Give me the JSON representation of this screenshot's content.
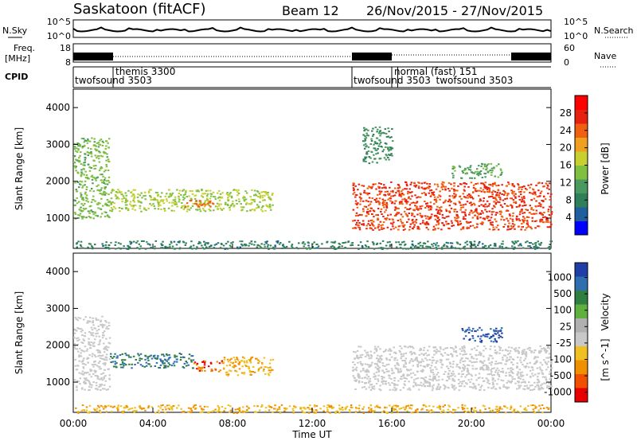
{
  "header": {
    "station": "Saskatoon (fitACF)",
    "beam_label": "Beam 12",
    "date_range": "26/Nov/2015 - 27/Nov/2015"
  },
  "strips": {
    "nsky_label": "N.Sky",
    "nsky_ticks": [
      "10^5",
      "10^0"
    ],
    "nsearch_label": "N.Search",
    "nsearch_ticks": [
      "10^5",
      "10^0"
    ],
    "freq_label_1": "Freq.",
    "freq_label_2": "[MHz]",
    "freq_ticks": [
      "18",
      "8"
    ],
    "nave_ticks": [
      "60",
      "0"
    ],
    "nave_label": "Nave",
    "cpid_label": "CPID"
  },
  "cpid_segments": [
    {
      "label": "twofsound 3503",
      "start_hour": 0.0
    },
    {
      "label": "themis 3300",
      "start_hour": 2.0
    },
    {
      "label": "twofsound 3503",
      "start_hour": 14.0
    },
    {
      "label": "normal (fast) 151",
      "start_hour": 16.0
    },
    {
      "label": "twofsound 3503",
      "start_hour": 16.3
    }
  ],
  "panels": {
    "ylabel": "Slant Range [km]",
    "xlabel": "Time UT",
    "yticks": [
      "1000",
      "2000",
      "3000",
      "4000"
    ],
    "xticks": [
      "00:00",
      "04:00",
      "08:00",
      "12:00",
      "16:00",
      "20:00",
      "00:00"
    ]
  },
  "power_scale": {
    "label": "Power [dB]",
    "ticks": [
      "4",
      "8",
      "12",
      "16",
      "20",
      "24",
      "28"
    ],
    "colors": [
      "#0000ff",
      "#1f5fa0",
      "#2e7f5a",
      "#4a9a60",
      "#80c040",
      "#c8d030",
      "#f0a020",
      "#f06010",
      "#e82010",
      "#ff0000"
    ]
  },
  "velocity_scale": {
    "label_main": "Velocity",
    "label_unit": "[m s^-1]",
    "ticks": [
      "1000",
      "500",
      "100",
      "25",
      "-25",
      "-100",
      "-500",
      "-1000"
    ],
    "colors": [
      "#1f3fa8",
      "#2f6fb0",
      "#2e7f40",
      "#60b040",
      "#b0b0b0",
      "#c8c8c8",
      "#f0c020",
      "#f09000",
      "#f05000",
      "#e80000"
    ]
  },
  "chart_data": [
    {
      "type": "heatmap",
      "title": "Power",
      "xlabel": "Time UT",
      "ylabel": "Slant Range [km]",
      "xlim_hours": [
        0,
        24
      ],
      "ylim_km": [
        180,
        4500
      ],
      "colorbar": {
        "label": "Power [dB]",
        "range": [
          0,
          32
        ]
      },
      "regions": [
        {
          "t_start": 0.0,
          "t_end": 1.8,
          "range_min": 1000,
          "range_max": 3200,
          "power_db": 14
        },
        {
          "t_start": 1.8,
          "t_end": 10.0,
          "range_min": 1200,
          "range_max": 1800,
          "power_db": 16
        },
        {
          "t_start": 5.5,
          "t_end": 7.0,
          "range_min": 1300,
          "range_max": 1500,
          "power_db": 24
        },
        {
          "t_start": 14.0,
          "t_end": 24.0,
          "range_min": 700,
          "range_max": 2000,
          "power_db": 26
        },
        {
          "t_start": 14.5,
          "t_end": 16.0,
          "range_min": 2500,
          "range_max": 3500,
          "power_db": 10
        },
        {
          "t_start": 19.0,
          "t_end": 21.5,
          "range_min": 2100,
          "range_max": 2500,
          "power_db": 12
        },
        {
          "t_start": 0.0,
          "t_end": 24.0,
          "range_min": 180,
          "range_max": 400,
          "power_db": 8
        }
      ]
    },
    {
      "type": "heatmap",
      "title": "Velocity",
      "xlabel": "Time UT",
      "ylabel": "Slant Range [km]",
      "xlim_hours": [
        0,
        24
      ],
      "ylim_km": [
        180,
        4500
      ],
      "colorbar": {
        "label": "Velocity [m s^-1]",
        "range": [
          -1000,
          1000
        ]
      },
      "regions": [
        {
          "t_start": 0.0,
          "t_end": 1.8,
          "range_min": 800,
          "range_max": 2800,
          "velocity": 0
        },
        {
          "t_start": 1.8,
          "t_end": 6.0,
          "range_min": 1400,
          "range_max": 1800,
          "velocity": 100
        },
        {
          "t_start": 6.0,
          "t_end": 7.5,
          "range_min": 1300,
          "range_max": 1600,
          "velocity": -500
        },
        {
          "t_start": 7.5,
          "t_end": 10.0,
          "range_min": 1200,
          "range_max": 1700,
          "velocity": -100
        },
        {
          "t_start": 14.0,
          "t_end": 24.0,
          "range_min": 800,
          "range_max": 2000,
          "velocity": 0
        },
        {
          "t_start": 19.5,
          "t_end": 21.5,
          "range_min": 2100,
          "range_max": 2500,
          "velocity": 500
        },
        {
          "t_start": 0.0,
          "t_end": 24.0,
          "range_min": 180,
          "range_max": 400,
          "velocity": -100
        }
      ]
    }
  ]
}
